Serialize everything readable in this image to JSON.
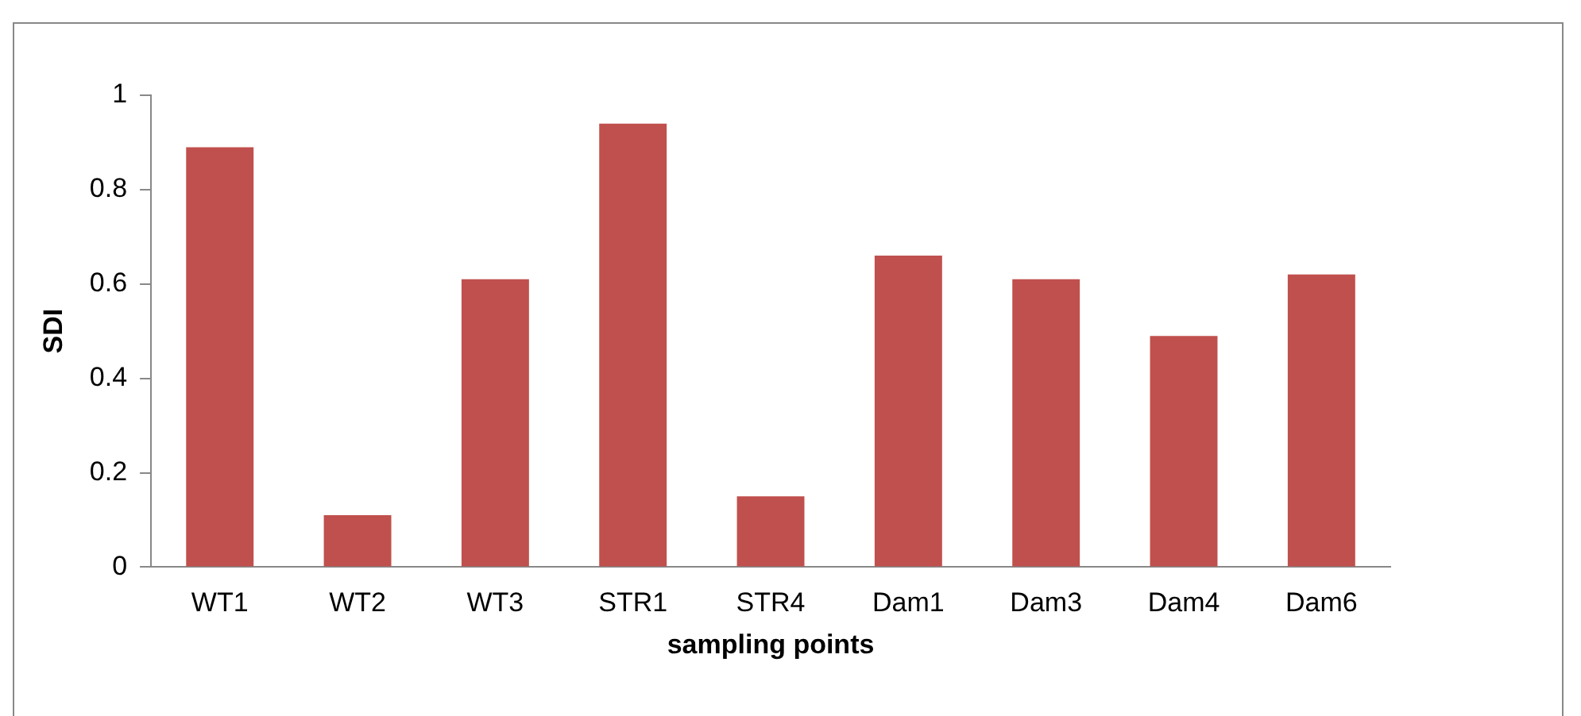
{
  "chart_data": {
    "type": "bar",
    "xlabel": "sampling points",
    "ylabel": "SDI",
    "categories": [
      "WT1",
      "WT2",
      "WT3",
      "STR1",
      "STR4",
      "Dam1",
      "Dam3",
      "Dam4",
      "Dam6"
    ],
    "values": [
      0.89,
      0.11,
      0.61,
      0.94,
      0.15,
      0.66,
      0.61,
      0.49,
      0.62
    ],
    "color": "#c0504d",
    "ylim": [
      0,
      1
    ],
    "yticks": [
      0,
      0.2,
      0.4,
      0.6,
      0.8,
      1
    ],
    "grid": false,
    "legend": false
  }
}
